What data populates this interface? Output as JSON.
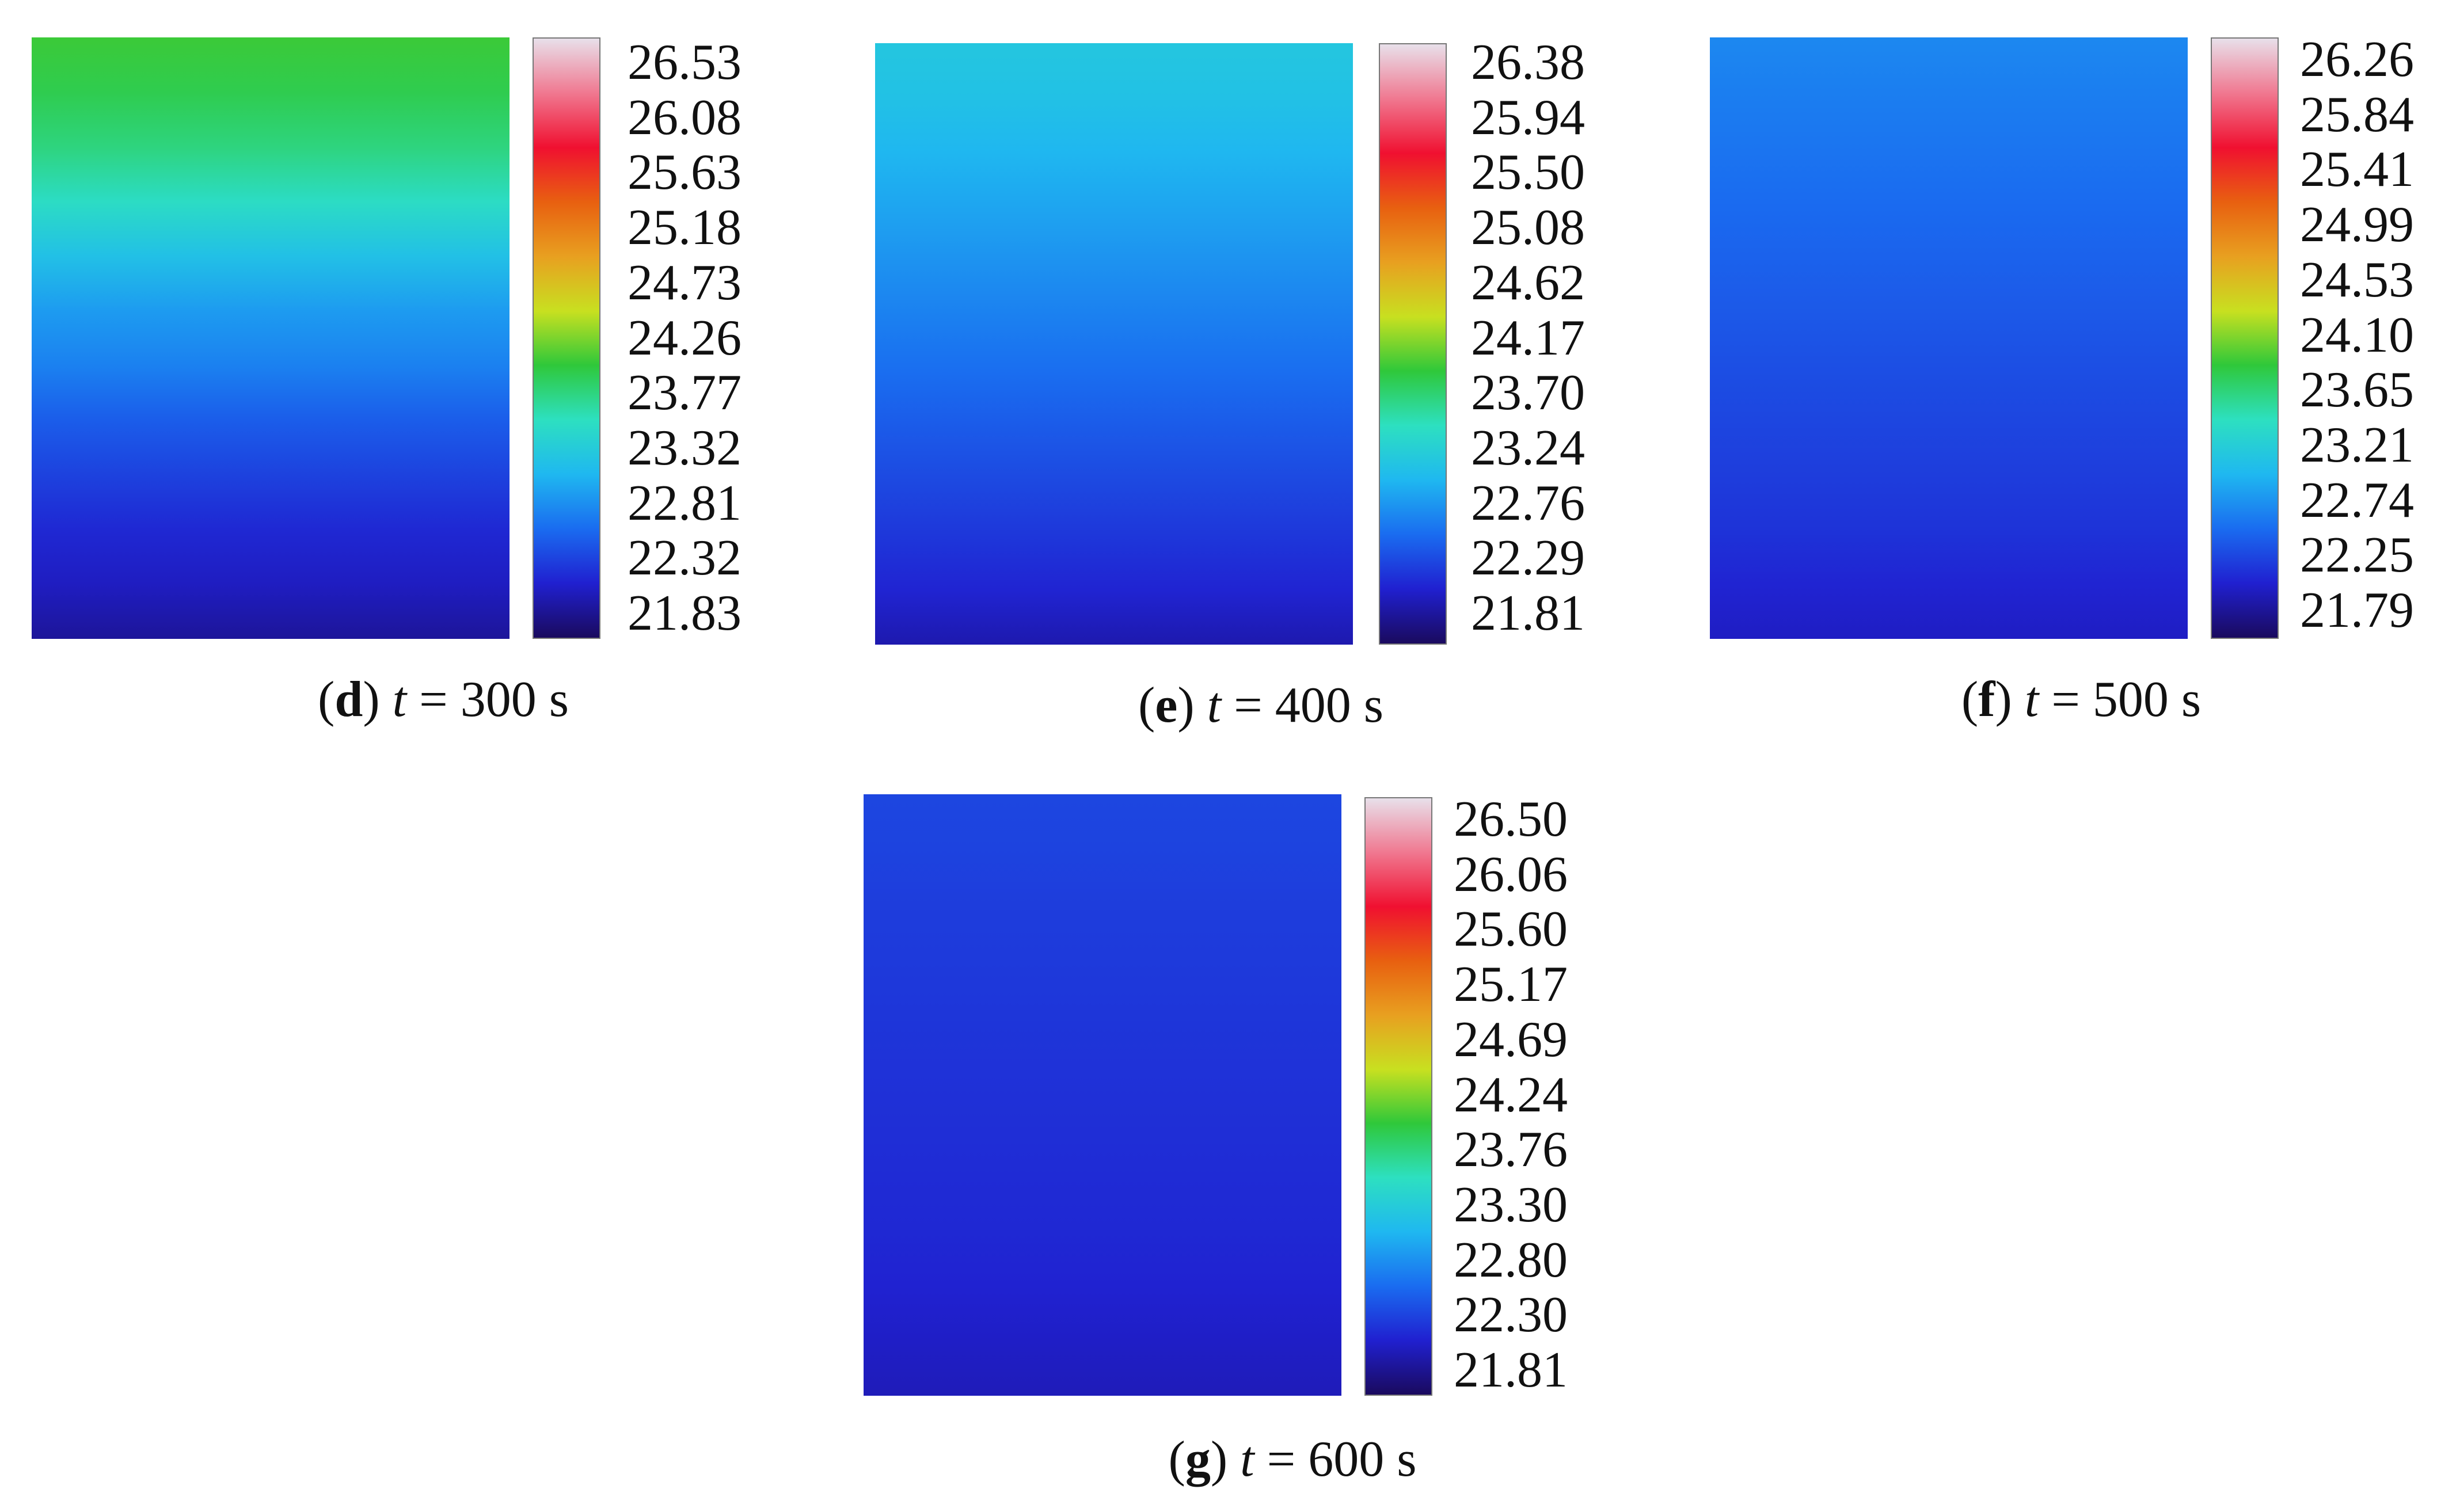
{
  "colormap": [
    "#1a0a5e",
    "#2020d0",
    "#1a6cf0",
    "#1fb8f0",
    "#2de0c0",
    "#2fc83a",
    "#c8e020",
    "#e8a020",
    "#e86010",
    "#f01030",
    "#f07890",
    "#e8e0ea"
  ],
  "chart_data": [
    {
      "type": "heatmap",
      "panel": "d",
      "time_label": "t",
      "time_value": "= 300 s",
      "colorbar_ticks": [
        "26.53",
        "26.08",
        "25.63",
        "25.18",
        "24.73",
        "24.26",
        "23.77",
        "23.32",
        "22.81",
        "22.32",
        "21.83"
      ],
      "vmin": 21.83,
      "vmax": 26.53,
      "row_temperatures_top_to_bottom": [
        24.0,
        23.9,
        23.75,
        23.5,
        23.2,
        22.95,
        22.8,
        22.6,
        22.45,
        22.3,
        22.2,
        22.05
      ]
    },
    {
      "type": "heatmap",
      "panel": "e",
      "time_label": "t",
      "time_value": "= 400 s",
      "colorbar_ticks": [
        "26.38",
        "25.94",
        "25.50",
        "25.08",
        "24.62",
        "24.17",
        "23.70",
        "23.24",
        "22.76",
        "22.29",
        "21.81"
      ],
      "vmin": 21.81,
      "vmax": 26.38,
      "row_temperatures_top_to_bottom": [
        23.2,
        23.15,
        23.05,
        22.95,
        22.85,
        22.75,
        22.65,
        22.55,
        22.45,
        22.35,
        22.25,
        22.1
      ]
    },
    {
      "type": "heatmap",
      "panel": "f",
      "time_label": "t",
      "time_value": "= 500 s",
      "colorbar_ticks": [
        "26.26",
        "25.84",
        "25.41",
        "24.99",
        "24.53",
        "24.10",
        "23.65",
        "23.21",
        "22.74",
        "22.25",
        "21.79"
      ],
      "vmin": 21.79,
      "vmax": 26.26,
      "row_temperatures_top_to_bottom": [
        22.75,
        22.7,
        22.65,
        22.6,
        22.55,
        22.5,
        22.45,
        22.4,
        22.35,
        22.3,
        22.22,
        22.15
      ]
    },
    {
      "type": "heatmap",
      "panel": "g",
      "time_label": "t",
      "time_value": "= 600 s",
      "colorbar_ticks": [
        "26.50",
        "26.06",
        "25.60",
        "25.17",
        "24.69",
        "24.24",
        "23.76",
        "23.30",
        "22.80",
        "22.30",
        "21.81"
      ],
      "vmin": 21.81,
      "vmax": 26.5,
      "row_temperatures_top_to_bottom": [
        22.45,
        22.43,
        22.4,
        22.38,
        22.36,
        22.34,
        22.32,
        22.3,
        22.28,
        22.25,
        22.2,
        22.15
      ]
    }
  ]
}
